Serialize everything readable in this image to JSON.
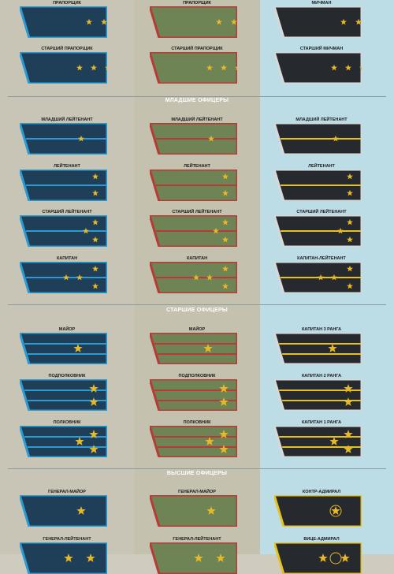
{
  "colors": {
    "blue": {
      "fill": "#1e3f57",
      "edge": "#2b9bd3",
      "stripe": "#2b9bd3"
    },
    "green": {
      "fill": "#6f8455",
      "edge": "#b83a36",
      "stripe": "#b83a36"
    },
    "black": {
      "fill": "#262a2e",
      "edge": "#d8d8d8",
      "stripe": "#e7c21e"
    },
    "star": "#e7b928"
  },
  "sections": [
    {
      "title": "МЛАДШИЕ ОФИЦЕРЫ"
    },
    {
      "title": "СТАРШИЕ ОФИЦЕРЫ"
    },
    {
      "title": "ВЫСШИЕ ОФИЦЕРЫ"
    }
  ],
  "rows": [
    {
      "labels": [
        "ПРАПОРЩИК",
        "ПРАПОРЩИК",
        "МИЧМАН"
      ],
      "stars": 2,
      "stripes": 0,
      "style": "warrant"
    },
    {
      "labels": [
        "СТАРШИЙ ПРАПОРЩИК",
        "СТАРШИЙ ПРАПОРЩИК",
        "СТАРШИЙ МИЧМАН"
      ],
      "stars": 3,
      "stripes": 0,
      "style": "warrant"
    },
    {
      "labels": [
        "МЛАДШИЙ ЛЕЙТЕНАНТ",
        "МЛАДШИЙ ЛЕЙТЕНАНТ",
        "МЛАДШИЙ ЛЕЙТЕНАНТ"
      ],
      "stars": 1,
      "stripes": 1,
      "style": "junior"
    },
    {
      "labels": [
        "ЛЕЙТЕНАНТ",
        "ЛЕЙТЕНАНТ",
        "ЛЕЙТЕНАНТ"
      ],
      "stars": 2,
      "stripes": 1,
      "style": "junior"
    },
    {
      "labels": [
        "СТАРШИЙ ЛЕЙТЕНАНТ",
        "СТАРШИЙ ЛЕЙТЕНАНТ",
        "СТАРШИЙ ЛЕЙТЕНАНТ"
      ],
      "stars": 3,
      "stripes": 1,
      "style": "junior"
    },
    {
      "labels": [
        "КАПИТАН",
        "КАПИТАН",
        "КАПИТАН-ЛЕЙТЕНАНТ"
      ],
      "stars": 4,
      "stripes": 1,
      "style": "junior"
    },
    {
      "labels": [
        "МАЙОР",
        "МАЙОР",
        "КАПИТАН 3 РАНГА"
      ],
      "stars": 1,
      "stripes": 2,
      "style": "senior"
    },
    {
      "labels": [
        "ПОДПОЛКОВНИК",
        "ПОДПОЛКОВНИК",
        "КАПИТАН 2 РАНГА"
      ],
      "stars": 2,
      "stripes": 2,
      "style": "senior"
    },
    {
      "labels": [
        "ПОЛКОВНИК",
        "ПОЛКОВНИК",
        "КАПИТАН 1 РАНГА"
      ],
      "stars": 3,
      "stripes": 2,
      "style": "senior"
    },
    {
      "labels": [
        "ГЕНЕРАЛ-МАЙОР",
        "ГЕНЕРАЛ-МАЙОР",
        "КОНТР-АДМИРАЛ"
      ],
      "stars": 1,
      "stripes": 0,
      "style": "general"
    },
    {
      "labels": [
        "ГЕНЕРАЛ-ЛЕЙТЕНАНТ",
        "ГЕНЕРАЛ-ЛЕЙТЕНАНТ",
        "ВИЦЕ-АДМИРАЛ"
      ],
      "stars": 2,
      "stripes": 0,
      "style": "general"
    }
  ]
}
